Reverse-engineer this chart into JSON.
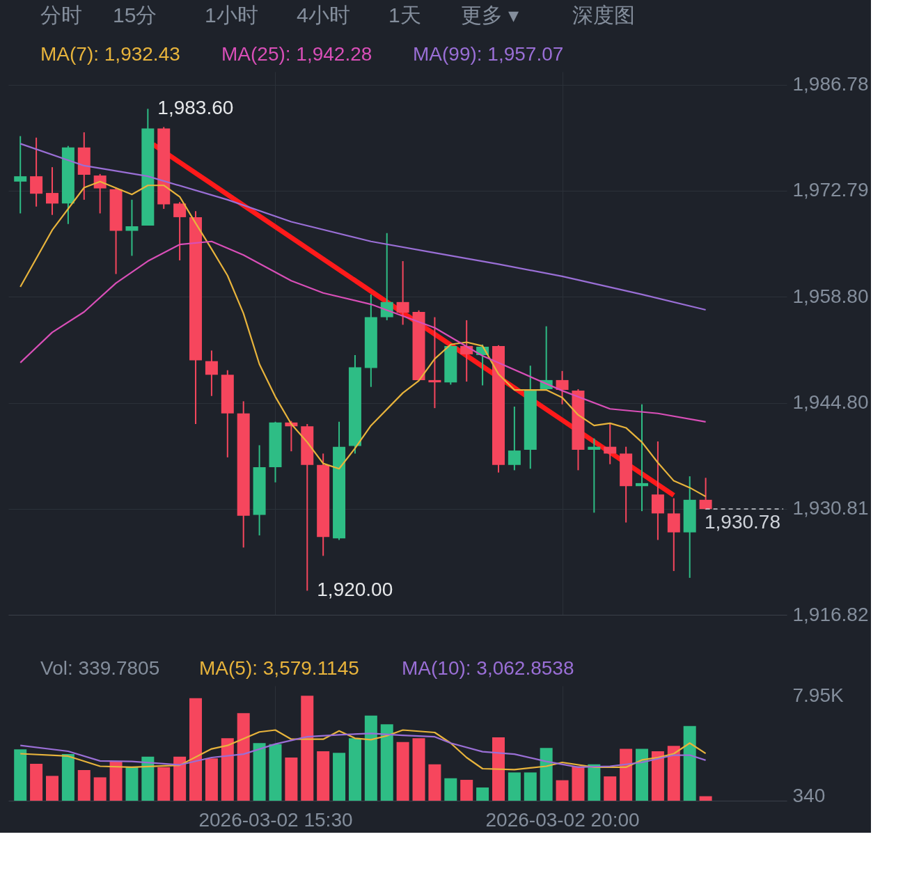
{
  "chart_data": [
    {
      "type": "candlestick",
      "tick_labels": "y",
      "grid": true,
      "annotations": [
        "分时",
        "15分",
        "1小时",
        "4小时",
        "1天",
        "更多 ▾",
        "深度图",
        {
          "text": "1,983.60",
          "x": "2026-03-02T13:30",
          "y": 1983.6
        },
        {
          "text": "1,920.00",
          "x": "2026-03-02T16:00",
          "y": 1920.0
        }
      ],
      "x": [
        "2026-03-02T11:30",
        "2026-03-02T11:45",
        "2026-03-02T12:00",
        "2026-03-02T12:15",
        "2026-03-02T12:30",
        "2026-03-02T12:45",
        "2026-03-02T13:00",
        "2026-03-02T13:15",
        "2026-03-02T13:30",
        "2026-03-02T13:45",
        "2026-03-02T14:00",
        "2026-03-02T14:15",
        "2026-03-02T14:30",
        "2026-03-02T14:45",
        "2026-03-02T15:00",
        "2026-03-02T15:15",
        "2026-03-02T15:30",
        "2026-03-02T15:45",
        "2026-03-02T16:00",
        "2026-03-02T16:15",
        "2026-03-02T16:30",
        "2026-03-02T16:45",
        "2026-03-02T17:00",
        "2026-03-02T17:15",
        "2026-03-02T17:30",
        "2026-03-02T17:45",
        "2026-03-02T18:00",
        "2026-03-02T18:15",
        "2026-03-02T18:30",
        "2026-03-02T18:45",
        "2026-03-02T19:00",
        "2026-03-02T19:15",
        "2026-03-02T19:30",
        "2026-03-02T19:45",
        "2026-03-02T20:00",
        "2026-03-02T20:15",
        "2026-03-02T20:30",
        "2026-03-02T20:45",
        "2026-03-02T21:00",
        "2026-03-02T21:15",
        "2026-03-02T21:30",
        "2026-03-02T21:45",
        "2026-03-02T22:00",
        "2026-03-02T22:15"
      ],
      "ohlc": [
        [
          1974.0,
          1980.0,
          1969.8,
          1974.7
        ],
        [
          1974.7,
          1979.8,
          1970.7,
          1972.4
        ],
        [
          1972.5,
          1975.9,
          1969.6,
          1971.1
        ],
        [
          1971.1,
          1978.7,
          1968.4,
          1978.5
        ],
        [
          1978.5,
          1980.5,
          1971.6,
          1974.9
        ],
        [
          1974.8,
          1975.0,
          1969.8,
          1973.1
        ],
        [
          1973.0,
          1973.2,
          1961.8,
          1967.5
        ],
        [
          1967.5,
          1971.6,
          1964.2,
          1968.1
        ],
        [
          1968.2,
          1983.6,
          1968.2,
          1981.0
        ],
        [
          1981.0,
          1981.2,
          1970.4,
          1971.0
        ],
        [
          1971.1,
          1971.3,
          1963.6,
          1969.3
        ],
        [
          1969.3,
          1970.1,
          1942.0,
          1950.4
        ],
        [
          1950.3,
          1951.7,
          1945.7,
          1948.5
        ],
        [
          1948.5,
          1949.1,
          1937.6,
          1943.4
        ],
        [
          1943.4,
          1945.0,
          1925.7,
          1929.9
        ],
        [
          1930.0,
          1939.2,
          1927.3,
          1936.3
        ],
        [
          1936.3,
          1942.3,
          1934.3,
          1942.2
        ],
        [
          1942.2,
          1942.4,
          1938.4,
          1941.7
        ],
        [
          1941.7,
          1942.0,
          1920.0,
          1936.6
        ],
        [
          1936.6,
          1938.1,
          1924.6,
          1927.1
        ],
        [
          1926.9,
          1942.3,
          1926.7,
          1939.0
        ],
        [
          1939.1,
          1951.1,
          1938.1,
          1949.5
        ],
        [
          1949.4,
          1959.1,
          1946.9,
          1956.1
        ],
        [
          1956.1,
          1967.2,
          1955.7,
          1958.1
        ],
        [
          1958.1,
          1963.5,
          1955.1,
          1956.7
        ],
        [
          1956.8,
          1957.0,
          1947.7,
          1947.8
        ],
        [
          1947.8,
          1956.1,
          1944.1,
          1947.5
        ],
        [
          1947.5,
          1952.5,
          1947.2,
          1952.3
        ],
        [
          1952.3,
          1955.7,
          1947.6,
          1951.2
        ],
        [
          1951.1,
          1952.5,
          1947.1,
          1952.2
        ],
        [
          1952.3,
          1952.4,
          1935.6,
          1936.6
        ],
        [
          1936.6,
          1944.3,
          1935.9,
          1938.5
        ],
        [
          1938.6,
          1949.7,
          1936.1,
          1946.5
        ],
        [
          1946.6,
          1954.9,
          1946.4,
          1947.8
        ],
        [
          1947.8,
          1949.0,
          1944.6,
          1946.5
        ],
        [
          1946.4,
          1946.6,
          1935.9,
          1938.6
        ],
        [
          1938.6,
          1940.1,
          1930.3,
          1939.0
        ],
        [
          1939.0,
          1942.0,
          1936.7,
          1938.1
        ],
        [
          1938.1,
          1939.0,
          1929.0,
          1933.8
        ],
        [
          1933.8,
          1944.6,
          1930.5,
          1934.2
        ],
        [
          1932.7,
          1939.7,
          1926.7,
          1930.2
        ],
        [
          1930.2,
          1932.2,
          1922.6,
          1927.7
        ],
        [
          1927.7,
          1935.1,
          1921.7,
          1932.0
        ],
        [
          1932.0,
          1934.9,
          1930.7,
          1930.78
        ]
      ],
      "colors": [
        "#2ebd85",
        "#f6465d",
        "#f6465d",
        "#2ebd85",
        "#f6465d",
        "#f6465d",
        "#f6465d",
        "#2ebd85",
        "#2ebd85",
        "#f6465d",
        "#f6465d",
        "#f6465d",
        "#f6465d",
        "#f6465d",
        "#f6465d",
        "#2ebd85",
        "#2ebd85",
        "#f6465d",
        "#f6465d",
        "#f6465d",
        "#2ebd85",
        "#2ebd85",
        "#2ebd85",
        "#2ebd85",
        "#f6465d",
        "#f6465d",
        "#f6465d",
        "#2ebd85",
        "#f6465d",
        "#2ebd85",
        "#f6465d",
        "#2ebd85",
        "#2ebd85",
        "#2ebd85",
        "#f6465d",
        "#f6465d",
        "#2ebd85",
        "#f6465d",
        "#f6465d",
        "#2ebd85",
        "#f6465d",
        "#f6465d",
        "#2ebd85",
        "#f6465d"
      ],
      "series": [
        {
          "type": "line",
          "name": "MA(7): 1,932.43",
          "color": "#e8b43c",
          "x": [
            "2026-03-02T11:30",
            "2026-03-02T12:00",
            "2026-03-02T12:30",
            "2026-03-02T12:45",
            "2026-03-02T13:15",
            "2026-03-02T13:30",
            "2026-03-02T13:45",
            "2026-03-02T14:00",
            "2026-03-02T14:15",
            "2026-03-02T14:30",
            "2026-03-02T14:45",
            "2026-03-02T15:00",
            "2026-03-02T15:15",
            "2026-03-02T15:30",
            "2026-03-02T15:45",
            "2026-03-02T16:00",
            "2026-03-02T16:15",
            "2026-03-02T16:30",
            "2026-03-02T16:45",
            "2026-03-02T17:00",
            "2026-03-02T17:30",
            "2026-03-02T17:45",
            "2026-03-02T18:00",
            "2026-03-02T18:15",
            "2026-03-02T18:30",
            "2026-03-02T18:45",
            "2026-03-02T19:00",
            "2026-03-02T19:15",
            "2026-03-02T19:45",
            "2026-03-02T20:00",
            "2026-03-02T20:15",
            "2026-03-02T20:30",
            "2026-03-02T20:45",
            "2026-03-02T21:00",
            "2026-03-02T21:15",
            "2026-03-02T21:30",
            "2026-03-02T21:45",
            "2026-03-02T22:00",
            "2026-03-02T22:15"
          ],
          "values": [
            1960.1,
            1967.6,
            1973.2,
            1974.0,
            1972.3,
            1973.5,
            1973.5,
            1972.0,
            1968.5,
            1965.1,
            1961.6,
            1956.6,
            1949.9,
            1945.6,
            1942.0,
            1939.6,
            1936.8,
            1936.1,
            1938.8,
            1941.8,
            1946.1,
            1947.7,
            1950.6,
            1952.5,
            1952.8,
            1952.3,
            1948.6,
            1946.5,
            1946.5,
            1945.5,
            1943.2,
            1941.8,
            1942.1,
            1941.5,
            1939.6,
            1936.9,
            1934.5,
            1933.6,
            1932.43
          ]
        },
        {
          "type": "line",
          "name": "MA(25): 1,942.28",
          "color": "#d94fb8",
          "x": [
            "2026-03-02T11:30",
            "2026-03-02T12:00",
            "2026-03-02T12:30",
            "2026-03-02T13:00",
            "2026-03-02T13:30",
            "2026-03-02T14:00",
            "2026-03-02T14:30",
            "2026-03-02T15:00",
            "2026-03-02T15:45",
            "2026-03-02T16:15",
            "2026-03-02T17:00",
            "2026-03-02T18:00",
            "2026-03-02T18:45",
            "2026-03-02T20:00",
            "2026-03-02T20:45",
            "2026-03-02T21:30",
            "2026-03-02T22:15"
          ],
          "values": [
            1950.1,
            1954.1,
            1956.8,
            1960.6,
            1963.5,
            1965.7,
            1966.1,
            1964.3,
            1960.9,
            1959.3,
            1957.8,
            1954.7,
            1951.0,
            1946.4,
            1944.0,
            1943.4,
            1942.28
          ]
        },
        {
          "type": "line",
          "name": "MA(99): 1,957.07",
          "color": "#9a6fd6",
          "x": [
            "2026-03-02T11:30",
            "2026-03-02T12:30",
            "2026-03-02T13:30",
            "2026-03-02T14:45",
            "2026-03-02T15:45",
            "2026-03-02T17:00",
            "2026-03-02T18:00",
            "2026-03-02T19:00",
            "2026-03-02T20:00",
            "2026-03-02T21:15",
            "2026-03-02T22:15"
          ],
          "values": [
            1979.0,
            1976.1,
            1974.7,
            1971.6,
            1968.7,
            1966.1,
            1964.6,
            1963.1,
            1961.5,
            1959.1,
            1957.07
          ]
        },
        {
          "type": "line",
          "color": "#ff1a1a",
          "x": [
            "2026-03-02T13:35",
            "2026-03-02T21:45"
          ],
          "values": [
            1978.9,
            1932.6
          ]
        }
      ],
      "ref_lines": [
        {
          "axis": "y",
          "value": 1930.78,
          "label": "1,930.78",
          "line_style": "dashed",
          "color": "#cfd3da"
        }
      ],
      "xlim": [
        "2026-03-02T11:22",
        "2026-03-02T23:28"
      ],
      "xticks": [
        "2026-03-02T15:30",
        "2026-03-02T20:00"
      ],
      "ylim": [
        1916.82,
        1988.5
      ],
      "yticks": [
        {
          "value": 1916.82,
          "label": "1,916.82"
        },
        {
          "value": 1930.81,
          "label": "1,930.81"
        },
        {
          "value": 1944.8,
          "label": "1,944.80"
        },
        {
          "value": 1958.8,
          "label": "1,958.80"
        },
        {
          "value": 1972.79,
          "label": "1,972.79"
        },
        {
          "value": 1986.78,
          "label": "1,986.78"
        }
      ]
    },
    {
      "type": "bar",
      "grid": "x",
      "x": [
        "2026-03-02T11:30",
        "2026-03-02T11:45",
        "2026-03-02T12:00",
        "2026-03-02T12:15",
        "2026-03-02T12:30",
        "2026-03-02T12:45",
        "2026-03-02T13:00",
        "2026-03-02T13:15",
        "2026-03-02T13:30",
        "2026-03-02T13:45",
        "2026-03-02T14:00",
        "2026-03-02T14:15",
        "2026-03-02T14:30",
        "2026-03-02T14:45",
        "2026-03-02T15:00",
        "2026-03-02T15:15",
        "2026-03-02T15:30",
        "2026-03-02T15:45",
        "2026-03-02T16:00",
        "2026-03-02T16:15",
        "2026-03-02T16:30",
        "2026-03-02T16:45",
        "2026-03-02T17:00",
        "2026-03-02T17:15",
        "2026-03-02T17:30",
        "2026-03-02T17:45",
        "2026-03-02T18:00",
        "2026-03-02T18:15",
        "2026-03-02T18:30",
        "2026-03-02T18:45",
        "2026-03-02T19:00",
        "2026-03-02T19:15",
        "2026-03-02T19:30",
        "2026-03-02T19:45",
        "2026-03-02T20:00",
        "2026-03-02T20:15",
        "2026-03-02T20:30",
        "2026-03-02T20:45",
        "2026-03-02T21:00",
        "2026-03-02T21:15",
        "2026-03-02T21:30",
        "2026-03-02T21:45",
        "2026-03-02T22:00",
        "2026-03-02T22:15"
      ],
      "colors": [
        "#2ebd85",
        "#f6465d",
        "#f6465d",
        "#2ebd85",
        "#f6465d",
        "#f6465d",
        "#f6465d",
        "#2ebd85",
        "#2ebd85",
        "#f6465d",
        "#f6465d",
        "#f6465d",
        "#f6465d",
        "#f6465d",
        "#f6465d",
        "#2ebd85",
        "#2ebd85",
        "#f6465d",
        "#f6465d",
        "#f6465d",
        "#2ebd85",
        "#2ebd85",
        "#2ebd85",
        "#2ebd85",
        "#f6465d",
        "#f6465d",
        "#f6465d",
        "#2ebd85",
        "#f6465d",
        "#2ebd85",
        "#f6465d",
        "#2ebd85",
        "#2ebd85",
        "#2ebd85",
        "#f6465d",
        "#f6465d",
        "#2ebd85",
        "#f6465d",
        "#f6465d",
        "#2ebd85",
        "#f6465d",
        "#f6465d",
        "#2ebd85",
        "#f6465d"
      ],
      "series": [
        {
          "name": "Vol: 339.7805",
          "colors": [
            "#2ebd85",
            "#f6465d",
            "#f6465d",
            "#2ebd85",
            "#f6465d",
            "#f6465d",
            "#f6465d",
            "#2ebd85",
            "#2ebd85",
            "#f6465d",
            "#f6465d",
            "#f6465d",
            "#f6465d",
            "#f6465d",
            "#f6465d",
            "#2ebd85",
            "#2ebd85",
            "#f6465d",
            "#f6465d",
            "#f6465d",
            "#2ebd85",
            "#2ebd85",
            "#2ebd85",
            "#2ebd85",
            "#f6465d",
            "#f6465d",
            "#f6465d",
            "#2ebd85",
            "#f6465d",
            "#2ebd85",
            "#f6465d",
            "#2ebd85",
            "#2ebd85",
            "#2ebd85",
            "#f6465d",
            "#f6465d",
            "#2ebd85",
            "#f6465d",
            "#f6465d",
            "#2ebd85",
            "#f6465d",
            "#f6465d",
            "#2ebd85",
            "#f6465d"
          ],
          "values": [
            3890,
            2790,
            1880,
            3530,
            2320,
            1770,
            2970,
            2540,
            3340,
            2540,
            3340,
            7770,
            3200,
            4730,
            6630,
            4360,
            4290,
            3270,
            7950,
            3740,
            3630,
            4730,
            6450,
            5790,
            4440,
            4730,
            2760,
            1700,
            1580,
            1000,
            4800,
            2140,
            2140,
            4000,
            1550,
            2610,
            2760,
            1840,
            3930,
            3930,
            3740,
            4150,
            5650,
            339.7805
          ]
        },
        {
          "type": "line",
          "name": "MA(5): 3,579.1145",
          "color": "#e8b43c",
          "x": [
            "2026-03-02T11:30",
            "2026-03-02T12:15",
            "2026-03-02T12:45",
            "2026-03-02T13:15",
            "2026-03-02T14:00",
            "2026-03-02T14:30",
            "2026-03-02T14:45",
            "2026-03-02T15:15",
            "2026-03-02T15:30",
            "2026-03-02T15:45",
            "2026-03-02T16:15",
            "2026-03-02T16:30",
            "2026-03-02T16:45",
            "2026-03-02T17:00",
            "2026-03-02T17:15",
            "2026-03-02T17:30",
            "2026-03-02T18:00",
            "2026-03-02T18:15",
            "2026-03-02T18:30",
            "2026-03-02T18:45",
            "2026-03-02T19:15",
            "2026-03-02T19:45",
            "2026-03-02T20:00",
            "2026-03-02T20:30",
            "2026-03-02T21:00",
            "2026-03-02T21:15",
            "2026-03-02T21:30",
            "2026-03-02T21:45",
            "2026-03-02T22:00",
            "2026-03-02T22:15"
          ],
          "values": [
            3560,
            3378,
            2609,
            2535,
            2682,
            3925,
            4182,
            5208,
            5351,
            4656,
            4656,
            5281,
            4729,
            4621,
            4916,
            5351,
            5168,
            4364,
            3269,
            2426,
            2352,
            2609,
            2900,
            2535,
            2535,
            3087,
            3269,
            3560,
            4364,
            3579.1145
          ]
        },
        {
          "type": "line",
          "name": "MA(10): 3,062.8538",
          "color": "#9a6fd6",
          "x": [
            "2026-03-02T11:30",
            "2026-03-02T12:15",
            "2026-03-02T12:45",
            "2026-03-02T13:15",
            "2026-03-02T14:00",
            "2026-03-02T14:30",
            "2026-03-02T15:00",
            "2026-03-02T15:30",
            "2026-03-02T16:00",
            "2026-03-02T16:30",
            "2026-03-02T17:00",
            "2026-03-02T17:30",
            "2026-03-02T18:00",
            "2026-03-02T18:15",
            "2026-03-02T18:45",
            "2026-03-02T19:15",
            "2026-03-02T19:45",
            "2026-03-02T20:15",
            "2026-03-02T20:45",
            "2026-03-02T21:15",
            "2026-03-02T21:45",
            "2026-03-02T22:00",
            "2026-03-02T22:15"
          ],
          "values": [
            4182,
            3743,
            3013,
            2974,
            2717,
            3269,
            3526,
            4290,
            4842,
            4986,
            5099,
            4951,
            4842,
            4364,
            3708,
            3526,
            2974,
            2535,
            2609,
            2900,
            3452,
            3452,
            3062.8538
          ]
        }
      ],
      "xlim": [
        "2026-03-02T11:22",
        "2026-03-02T23:28"
      ],
      "xticks": [
        {
          "value": "2026-03-02T15:30",
          "label": "2026-03-02 15:30"
        },
        {
          "value": "2026-03-02T20:00",
          "label": "2026-03-02 20:00"
        }
      ],
      "ylim": [
        0,
        8700
      ],
      "yticks": [
        340,
        {
          "value": 7950,
          "label": "7.95K"
        }
      ]
    }
  ]
}
